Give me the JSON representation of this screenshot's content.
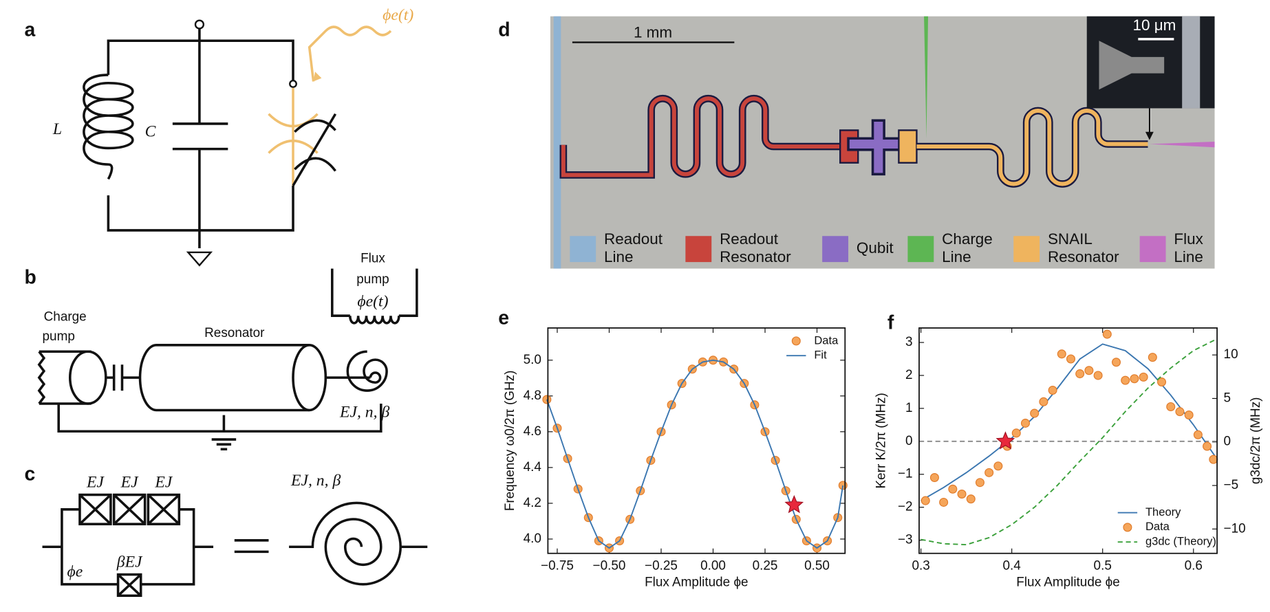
{
  "panel_labels": [
    "a",
    "b",
    "c",
    "d",
    "e",
    "f"
  ],
  "circuit_a": {
    "inductor": "L",
    "capacitor": "C",
    "flux_drive": "ϕe(t)"
  },
  "circuit_b": {
    "charge_pump": [
      "Charge",
      "pump"
    ],
    "resonator": "Resonator",
    "flux_pump": [
      "Flux",
      "pump",
      "ϕe(t)"
    ],
    "snail": "EJ, n, β"
  },
  "circuit_c": {
    "junctions": [
      "EJ",
      "EJ",
      "EJ"
    ],
    "small_junction": "βEJ",
    "flux": "ϕe",
    "snail": "EJ, n, β"
  },
  "micrograph_d": {
    "scale_bar": "1 mm",
    "inset_scale_bar": "10 μm",
    "legend": [
      {
        "label": [
          "Readout",
          "Line"
        ],
        "color": "#8fb3d3"
      },
      {
        "label": [
          "Readout",
          "Resonator"
        ],
        "color": "#c8443c"
      },
      {
        "label": [
          "Qubit"
        ],
        "color": "#8a6cc4"
      },
      {
        "label": [
          "Charge",
          "Line"
        ],
        "color": "#5db653"
      },
      {
        "label": [
          "SNAIL",
          "Resonator"
        ],
        "color": "#efb45e"
      },
      {
        "label": [
          "Flux",
          "Line"
        ],
        "color": "#c36fc4"
      }
    ]
  },
  "chart_data": [
    {
      "type": "line",
      "x_label": "Flux Amplitude ϕe",
      "y_label": "Frequency ω0/2π (GHz)",
      "xlim": [
        -0.795,
        0.635
      ],
      "ylim": [
        3.92,
        5.18
      ],
      "xticks": [
        {
          "value": -0.75,
          "label": "−0.75"
        },
        {
          "value": -0.5,
          "label": "−0.50"
        },
        {
          "value": -0.25,
          "label": "−0.25"
        },
        {
          "value": 0,
          "label": "0.00"
        },
        {
          "value": 0.25,
          "label": "0.25"
        },
        {
          "value": 0.5,
          "label": "0.50"
        }
      ],
      "yticks": [
        {
          "value": 4,
          "label": "4.0"
        },
        4.2,
        4.4,
        4.6,
        4.8,
        {
          "value": 5,
          "label": "5.0"
        }
      ],
      "legend": "upper right",
      "series": [
        {
          "name": "Data",
          "kind": "markers",
          "color": "#f5a55a",
          "x": [
            -0.8,
            -0.75,
            -0.7,
            -0.65,
            -0.6,
            -0.55,
            -0.5,
            -0.45,
            -0.4,
            -0.35,
            -0.3,
            -0.25,
            -0.2,
            -0.15,
            -0.1,
            -0.05,
            0,
            0.05,
            0.1,
            0.15,
            0.2,
            0.25,
            0.3,
            0.35,
            0.4,
            0.45,
            0.5,
            0.55,
            0.6,
            0.625
          ],
          "values": [
            4.78,
            4.62,
            4.45,
            4.28,
            4.12,
            3.99,
            3.95,
            3.99,
            4.11,
            4.27,
            4.44,
            4.6,
            4.75,
            4.87,
            4.95,
            4.99,
            5.0,
            4.99,
            4.95,
            4.87,
            4.75,
            4.6,
            4.44,
            4.27,
            4.11,
            3.99,
            3.95,
            3.99,
            4.12,
            4.3
          ]
        },
        {
          "name": "Fit",
          "kind": "line",
          "color": "#3a76b0",
          "x": [
            -0.8,
            -0.75,
            -0.7,
            -0.65,
            -0.6,
            -0.55,
            -0.5,
            -0.45,
            -0.4,
            -0.35,
            -0.3,
            -0.25,
            -0.2,
            -0.15,
            -0.1,
            -0.05,
            0,
            0.05,
            0.1,
            0.15,
            0.2,
            0.25,
            0.3,
            0.35,
            0.4,
            0.45,
            0.5,
            0.55,
            0.6,
            0.625
          ],
          "values": [
            4.78,
            4.62,
            4.45,
            4.28,
            4.12,
            3.99,
            3.95,
            3.99,
            4.11,
            4.27,
            4.44,
            4.6,
            4.75,
            4.87,
            4.95,
            4.99,
            5.0,
            4.99,
            4.95,
            4.87,
            4.75,
            4.6,
            4.44,
            4.27,
            4.11,
            3.99,
            3.95,
            3.99,
            4.12,
            4.3
          ]
        }
      ],
      "highlight": {
        "x": 0.39,
        "y": 4.19,
        "color": "#e8283c"
      }
    },
    {
      "type": "line",
      "x_label": "Flux Amplitude ϕe",
      "y_label": "Kerr K/2π (MHz)",
      "y2_label": "g3dc/2π (MHz)",
      "xlim": [
        0.298,
        0.626
      ],
      "ylim": [
        -3.4,
        3.44
      ],
      "y2lim": [
        -12.8,
        13.1
      ],
      "xticks": [
        0.3,
        0.4,
        0.5,
        0.6
      ],
      "yticks": [
        {
          "value": -3,
          "label": "−3"
        },
        {
          "value": -2,
          "label": "−2"
        },
        {
          "value": -1,
          "label": "−1"
        },
        0,
        1,
        2,
        3
      ],
      "y2ticks": [
        {
          "value": -10,
          "label": "−10"
        },
        {
          "value": -5,
          "label": "−5"
        },
        0,
        5,
        10
      ],
      "hline": 0,
      "legend": "lower right",
      "series": [
        {
          "name": "Theory",
          "kind": "line",
          "color": "#3a76b0",
          "x": [
            0.3,
            0.325,
            0.35,
            0.375,
            0.4,
            0.425,
            0.45,
            0.475,
            0.5,
            0.525,
            0.55,
            0.575,
            0.6,
            0.625
          ],
          "values": [
            -1.8,
            -1.4,
            -0.95,
            -0.45,
            0.1,
            0.75,
            1.6,
            2.5,
            2.95,
            2.75,
            2.2,
            1.4,
            0.5,
            -0.5
          ]
        },
        {
          "name": "Data",
          "kind": "markers",
          "color": "#f5a55a",
          "x": [
            0.305,
            0.315,
            0.325,
            0.335,
            0.345,
            0.355,
            0.365,
            0.375,
            0.385,
            0.395,
            0.405,
            0.415,
            0.425,
            0.435,
            0.445,
            0.455,
            0.465,
            0.475,
            0.485,
            0.495,
            0.505,
            0.515,
            0.525,
            0.535,
            0.545,
            0.555,
            0.565,
            0.575,
            0.585,
            0.595,
            0.605,
            0.615,
            0.622
          ],
          "values": [
            -1.8,
            -1.1,
            -1.85,
            -1.45,
            -1.6,
            -1.75,
            -1.25,
            -0.95,
            -0.75,
            -0.15,
            0.25,
            0.55,
            0.85,
            1.2,
            1.55,
            2.65,
            2.5,
            2.05,
            2.15,
            2.0,
            3.25,
            2.4,
            1.85,
            1.9,
            1.95,
            2.55,
            1.8,
            1.05,
            0.9,
            0.8,
            0.2,
            -0.15,
            -0.55
          ]
        },
        {
          "name": "g3dc (Theory)",
          "kind": "dashed",
          "color": "#3aa03a",
          "axis": "y2",
          "x": [
            0.3,
            0.325,
            0.35,
            0.375,
            0.4,
            0.425,
            0.45,
            0.475,
            0.5,
            0.525,
            0.55,
            0.575,
            0.6,
            0.625
          ],
          "values": [
            -11.2,
            -11.7,
            -11.8,
            -11.0,
            -9.5,
            -7.5,
            -5.0,
            -2.2,
            0.5,
            3.5,
            6.2,
            8.5,
            10.5,
            11.8
          ]
        }
      ],
      "highlight": {
        "x": 0.393,
        "y": 0,
        "color": "#e8283c"
      }
    }
  ]
}
